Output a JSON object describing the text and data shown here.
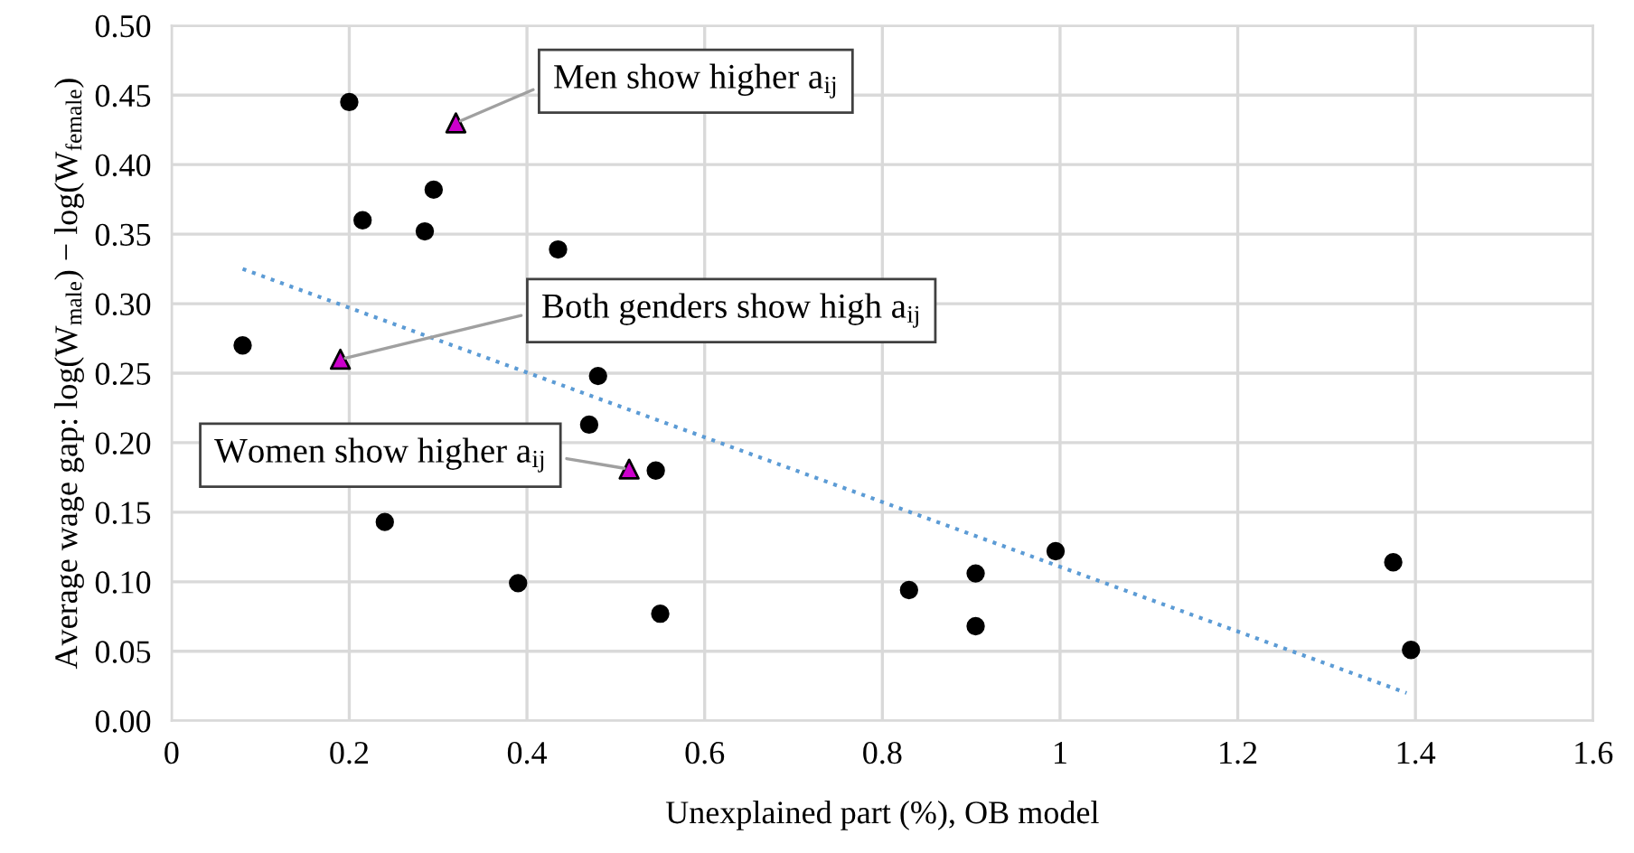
{
  "chart_data": {
    "type": "scatter",
    "xlabel": "Unexplained part (%), OB model",
    "ylabel": "Average wage gap: log(W$_{male}$) − log(W$_{female}$)",
    "xlim": [
      0,
      1.6
    ],
    "xticks": [
      {
        "value": 0,
        "label": "0"
      },
      0.2,
      0.4,
      0.6,
      0.8,
      {
        "value": 1,
        "label": "1"
      },
      1.2,
      1.4,
      1.6
    ],
    "ylim": [
      0,
      0.5
    ],
    "yticks": [
      {
        "value": 0,
        "label": "0.00"
      },
      0.05,
      {
        "value": 0.1,
        "label": "0.10"
      },
      0.15,
      {
        "value": 0.2,
        "label": "0.20"
      },
      0.25,
      {
        "value": 0.3,
        "label": "0.30"
      },
      0.35,
      {
        "value": 0.4,
        "label": "0.40"
      },
      0.45,
      {
        "value": 0.5,
        "label": "0.50"
      }
    ],
    "grid": true,
    "series": [
      {
        "marker": "circle",
        "color": "#000000",
        "x": [
          0.08,
          0.2,
          0.215,
          0.24,
          0.285,
          0.295,
          0.39,
          0.435,
          0.47,
          0.48,
          0.545,
          0.55,
          0.83,
          0.905,
          0.905,
          0.995,
          1.375,
          1.395
        ],
        "values": [
          0.27,
          0.445,
          0.36,
          0.143,
          0.352,
          0.382,
          0.099,
          0.339,
          0.213,
          0.248,
          0.18,
          0.077,
          0.094,
          0.068,
          0.106,
          0.122,
          0.114,
          0.051
        ]
      },
      {
        "marker": "triangle",
        "color": "#cc00cc",
        "x": [
          0.32,
          0.19,
          0.515
        ],
        "values": [
          0.43,
          0.26,
          0.181
        ]
      },
      {
        "type": "line",
        "line_style": "dotted",
        "color": "#5b9bd5",
        "x": [
          0.08,
          1.39
        ],
        "values": [
          0.325,
          0.02
        ]
      }
    ],
    "annotations": [
      {
        "text": "Men show higher a$_{ij}$",
        "x": 0.32,
        "y": 0.43
      },
      {
        "text": "Both genders show high a$_{ij}$",
        "x": 0.19,
        "y": 0.26
      },
      {
        "text": "Women show higher a$_{ij}$",
        "x": 0.515,
        "y": 0.181
      }
    ]
  }
}
